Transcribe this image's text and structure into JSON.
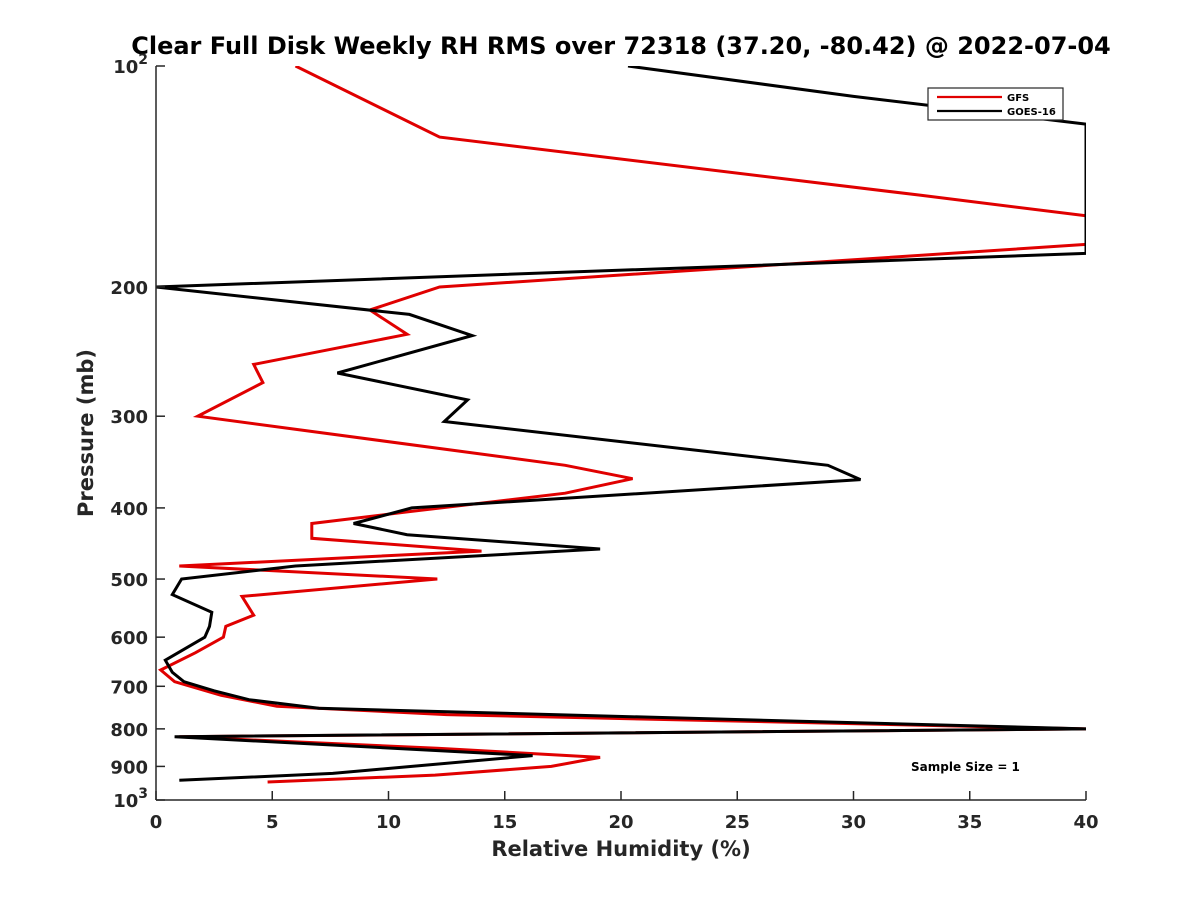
{
  "chart_data": {
    "type": "line",
    "title": "Clear Full Disk Weekly RH RMS over 72318 (37.20, -80.42) @ 2022-07-04",
    "xlabel": "Relative Humidity (%)",
    "ylabel": "Pressure (mb)",
    "xlim": [
      0,
      40
    ],
    "ylim": [
      100,
      1000
    ],
    "yscale": "log",
    "y_reversed": true,
    "grid": false,
    "legend_position": "top-right",
    "x_ticks": [
      0,
      5,
      10,
      15,
      20,
      25,
      30,
      35,
      40
    ],
    "x_tick_labels": [
      "0",
      "5",
      "10",
      "15",
      "20",
      "25",
      "30",
      "35",
      "40"
    ],
    "y_ticks": [
      100,
      200,
      300,
      400,
      500,
      600,
      700,
      800,
      900,
      1000
    ],
    "y_tick_labels": [
      {
        "base": "10",
        "exp": "2"
      },
      {
        "base": "200",
        "exp": ""
      },
      {
        "base": "300",
        "exp": ""
      },
      {
        "base": "400",
        "exp": ""
      },
      {
        "base": "500",
        "exp": ""
      },
      {
        "base": "600",
        "exp": ""
      },
      {
        "base": "700",
        "exp": ""
      },
      {
        "base": "800",
        "exp": ""
      },
      {
        "base": "900",
        "exp": ""
      },
      {
        "base": "10",
        "exp": "3"
      }
    ],
    "annotation": "Sample Size = 1",
    "series": [
      {
        "name": "GFS",
        "color": "#e00000",
        "points": [
          {
            "x": 6.0,
            "p": 100
          },
          {
            "x": 12.2,
            "p": 125
          },
          {
            "x": 32.9,
            "p": 150
          },
          {
            "x": 40.0,
            "p": 160
          },
          {
            "x": 40.0,
            "p": 175
          },
          {
            "x": 12.2,
            "p": 200
          },
          {
            "x": 9.2,
            "p": 215
          },
          {
            "x": 10.8,
            "p": 232
          },
          {
            "x": 4.2,
            "p": 255
          },
          {
            "x": 4.6,
            "p": 270
          },
          {
            "x": 1.8,
            "p": 300
          },
          {
            "x": 17.6,
            "p": 350
          },
          {
            "x": 20.5,
            "p": 365
          },
          {
            "x": 17.6,
            "p": 382
          },
          {
            "x": 10.8,
            "p": 405
          },
          {
            "x": 6.7,
            "p": 420
          },
          {
            "x": 6.7,
            "p": 440
          },
          {
            "x": 14.0,
            "p": 458
          },
          {
            "x": 1.0,
            "p": 480
          },
          {
            "x": 12.1,
            "p": 500
          },
          {
            "x": 3.7,
            "p": 528
          },
          {
            "x": 4.2,
            "p": 560
          },
          {
            "x": 3.0,
            "p": 580
          },
          {
            "x": 2.9,
            "p": 600
          },
          {
            "x": 1.7,
            "p": 630
          },
          {
            "x": 0.2,
            "p": 665
          },
          {
            "x": 0.8,
            "p": 690
          },
          {
            "x": 2.8,
            "p": 720
          },
          {
            "x": 5.2,
            "p": 745
          },
          {
            "x": 12.5,
            "p": 765
          },
          {
            "x": 40.0,
            "p": 800
          },
          {
            "x": 1.0,
            "p": 820
          },
          {
            "x": 12.1,
            "p": 850
          },
          {
            "x": 19.1,
            "p": 875
          },
          {
            "x": 17.0,
            "p": 900
          },
          {
            "x": 12.0,
            "p": 925
          },
          {
            "x": 4.8,
            "p": 945
          }
        ]
      },
      {
        "name": "GOES-16",
        "color": "#000000",
        "points": [
          {
            "x": 20.3,
            "p": 100
          },
          {
            "x": 30.0,
            "p": 110
          },
          {
            "x": 40.0,
            "p": 120
          },
          {
            "x": 40.0,
            "p": 180
          },
          {
            "x": 0.0,
            "p": 200
          },
          {
            "x": 10.9,
            "p": 218
          },
          {
            "x": 13.6,
            "p": 233
          },
          {
            "x": 7.8,
            "p": 262
          },
          {
            "x": 13.4,
            "p": 285
          },
          {
            "x": 12.4,
            "p": 305
          },
          {
            "x": 28.9,
            "p": 350
          },
          {
            "x": 30.3,
            "p": 366
          },
          {
            "x": 11.0,
            "p": 400
          },
          {
            "x": 8.5,
            "p": 420
          },
          {
            "x": 10.8,
            "p": 435
          },
          {
            "x": 19.1,
            "p": 455
          },
          {
            "x": 6.0,
            "p": 480
          },
          {
            "x": 1.1,
            "p": 500
          },
          {
            "x": 0.7,
            "p": 525
          },
          {
            "x": 2.4,
            "p": 555
          },
          {
            "x": 2.3,
            "p": 580
          },
          {
            "x": 2.1,
            "p": 600
          },
          {
            "x": 0.4,
            "p": 645
          },
          {
            "x": 0.7,
            "p": 670
          },
          {
            "x": 1.2,
            "p": 690
          },
          {
            "x": 2.5,
            "p": 710
          },
          {
            "x": 4.0,
            "p": 730
          },
          {
            "x": 7.0,
            "p": 750
          },
          {
            "x": 40.0,
            "p": 800
          },
          {
            "x": 0.8,
            "p": 820
          },
          {
            "x": 16.2,
            "p": 870
          },
          {
            "x": 11.0,
            "p": 900
          },
          {
            "x": 7.6,
            "p": 920
          },
          {
            "x": 1.0,
            "p": 940
          }
        ]
      }
    ]
  }
}
